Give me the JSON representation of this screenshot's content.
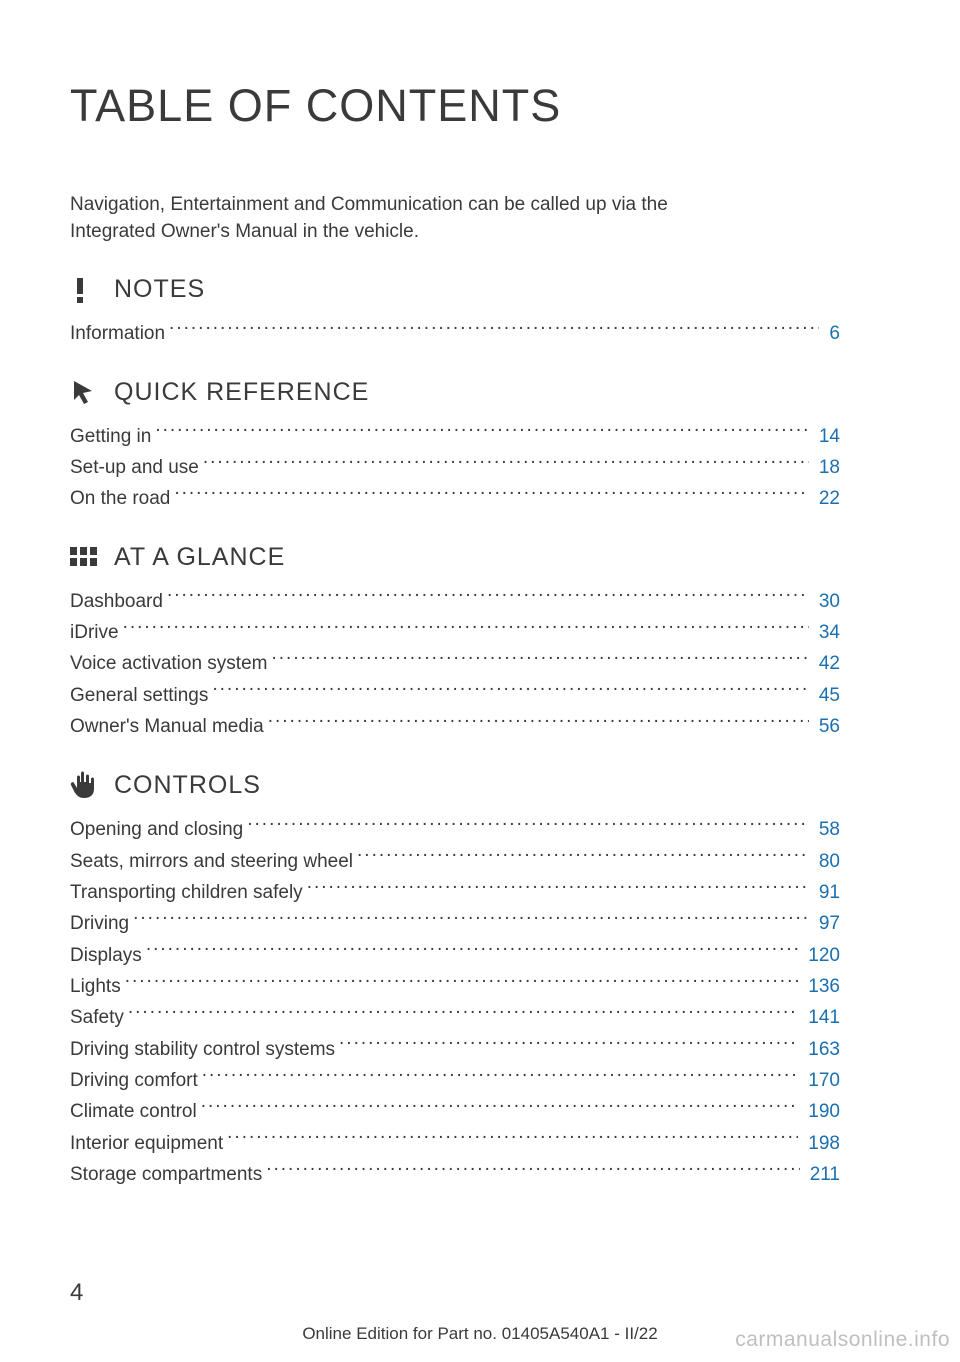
{
  "title": "TABLE OF CONTENTS",
  "intro": "Navigation, Entertainment and Communication can be called up via the Integrated Owner's Manual in the vehicle.",
  "sections": [
    {
      "icon": "exclamation",
      "title": "NOTES",
      "entries": [
        {
          "label": "Information",
          "page": "6"
        }
      ]
    },
    {
      "icon": "cursor",
      "title": "QUICK REFERENCE",
      "entries": [
        {
          "label": "Getting in",
          "page": "14"
        },
        {
          "label": "Set-up and use",
          "page": "18"
        },
        {
          "label": "On the road",
          "page": "22"
        }
      ]
    },
    {
      "icon": "grid",
      "title": "AT A GLANCE",
      "entries": [
        {
          "label": "Dashboard",
          "page": "30"
        },
        {
          "label": "iDrive",
          "page": "34"
        },
        {
          "label": "Voice activation system",
          "page": "42"
        },
        {
          "label": "General settings",
          "page": "45"
        },
        {
          "label": "Owner's Manual media",
          "page": "56"
        }
      ]
    },
    {
      "icon": "hand",
      "title": "CONTROLS",
      "entries": [
        {
          "label": "Opening and closing",
          "page": "58"
        },
        {
          "label": "Seats, mirrors and steering wheel",
          "page": "80"
        },
        {
          "label": "Transporting children safely",
          "page": "91"
        },
        {
          "label": "Driving",
          "page": "97"
        },
        {
          "label": "Displays",
          "page": "120"
        },
        {
          "label": "Lights",
          "page": "136"
        },
        {
          "label": "Safety",
          "page": "141"
        },
        {
          "label": "Driving stability control systems",
          "page": "163"
        },
        {
          "label": "Driving comfort",
          "page": "170"
        },
        {
          "label": "Climate control",
          "page": "190"
        },
        {
          "label": "Interior equipment",
          "page": "198"
        },
        {
          "label": "Storage compartments",
          "page": "211"
        }
      ]
    }
  ],
  "page_number": "4",
  "footer_edition": "Online Edition for Part no. 01405A540A1 - II/22",
  "watermark": "carmanualsonline.info",
  "colors": {
    "text": "#3a3a3a",
    "link": "#1a6fb0",
    "watermark": "#bfbfbf",
    "background": "#ffffff"
  }
}
